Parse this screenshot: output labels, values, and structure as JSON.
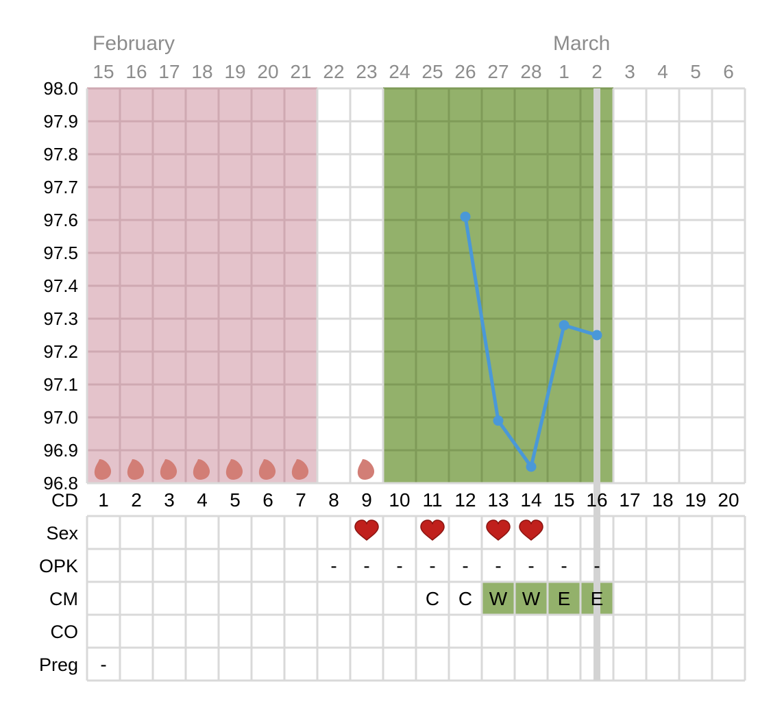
{
  "chart_data": {
    "type": "line",
    "months": [
      {
        "label": "February",
        "start_index": 0
      },
      {
        "label": "March",
        "start_index": 14
      }
    ],
    "dates": [
      "15",
      "16",
      "17",
      "18",
      "19",
      "20",
      "21",
      "22",
      "23",
      "24",
      "25",
      "26",
      "27",
      "28",
      "1",
      "2",
      "3",
      "4",
      "5",
      "6"
    ],
    "cycle_days": [
      "1",
      "2",
      "3",
      "4",
      "5",
      "6",
      "7",
      "8",
      "9",
      "10",
      "11",
      "12",
      "13",
      "14",
      "15",
      "16",
      "17",
      "18",
      "19",
      "20"
    ],
    "ylim": [
      96.8,
      98.0
    ],
    "yticks": [
      "98.0",
      "97.9",
      "97.8",
      "97.7",
      "97.6",
      "97.5",
      "97.4",
      "97.3",
      "97.2",
      "97.1",
      "97.0",
      "96.9",
      "96.8"
    ],
    "temperature": {
      "points": [
        {
          "index": 11,
          "value": 97.61
        },
        {
          "index": 12,
          "value": 96.99
        },
        {
          "index": 13,
          "value": 96.85
        },
        {
          "index": 14,
          "value": 97.28
        },
        {
          "index": 15,
          "value": 97.25
        }
      ],
      "color": "#4a98d8"
    },
    "period_days": [
      0,
      1,
      2,
      3,
      4,
      5,
      6,
      8
    ],
    "period_range": [
      0,
      6
    ],
    "fertile_range": [
      9,
      15
    ],
    "today_index": 15,
    "rows": [
      {
        "label": "CD"
      },
      {
        "label": "Sex",
        "marks": [
          8,
          10,
          12,
          13
        ]
      },
      {
        "label": "OPK",
        "values": {
          "7": "-",
          "8": "-",
          "9": "-",
          "10": "-",
          "11": "-",
          "12": "-",
          "13": "-",
          "14": "-",
          "15": "-"
        }
      },
      {
        "label": "CM",
        "values": {
          "10": "C",
          "11": "C",
          "12": "W",
          "13": "W",
          "14": "E",
          "15": "E"
        },
        "highlight_range": [
          12,
          15
        ]
      },
      {
        "label": "CO",
        "values": {}
      },
      {
        "label": "Preg",
        "values": {
          "0": "-"
        }
      }
    ],
    "colors": {
      "period_bg": "#e4c3cb",
      "period_grid": "#cfa9b2",
      "fertile_bg": "#93b16b",
      "fertile_grid": "#7f9b58",
      "grid": "#d9d9d9",
      "today": "#d3d3d3",
      "heart": "#c0201c",
      "drop": "#d27e76"
    }
  }
}
